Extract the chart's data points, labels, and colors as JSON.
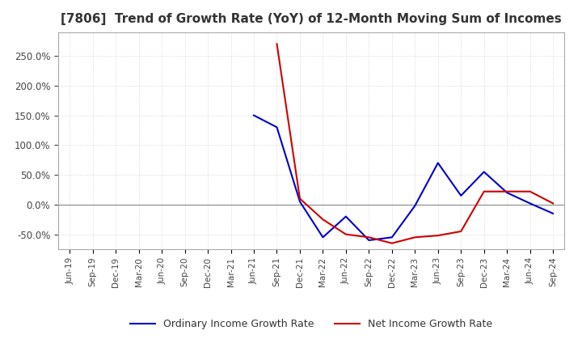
{
  "title": "[7806]  Trend of Growth Rate (YoY) of 12-Month Moving Sum of Incomes",
  "title_fontsize": 11,
  "ylim": [
    -75,
    290
  ],
  "yticks": [
    -50,
    0,
    50,
    100,
    150,
    200,
    250
  ],
  "background_color": "#ffffff",
  "grid_color": "#d0d0d0",
  "ordinary_color": "#0000cc",
  "net_color": "#cc0000",
  "dates": [
    "Jun-19",
    "Sep-19",
    "Dec-19",
    "Mar-20",
    "Jun-20",
    "Sep-20",
    "Dec-20",
    "Mar-21",
    "Jun-21",
    "Sep-21",
    "Dec-21",
    "Mar-22",
    "Jun-22",
    "Sep-22",
    "Dec-22",
    "Mar-23",
    "Jun-23",
    "Sep-23",
    "Dec-23",
    "Mar-24",
    "Jun-24",
    "Sep-24"
  ],
  "ordinary_income_growth": [
    null,
    null,
    null,
    null,
    null,
    null,
    null,
    null,
    150.0,
    130.0,
    5.0,
    -55.0,
    -20.0,
    -60.0,
    -55.0,
    -2.0,
    70.0,
    15.0,
    55.0,
    20.0,
    2.0,
    -15.0
  ],
  "net_income_growth": [
    null,
    null,
    null,
    null,
    null,
    null,
    null,
    null,
    null,
    270.0,
    10.0,
    -25.0,
    -50.0,
    -55.0,
    -65.0,
    -55.0,
    -52.0,
    -45.0,
    22.0,
    22.0,
    22.0,
    2.0
  ],
  "legend_labels": [
    "Ordinary Income Growth Rate",
    "Net Income Growth Rate"
  ]
}
